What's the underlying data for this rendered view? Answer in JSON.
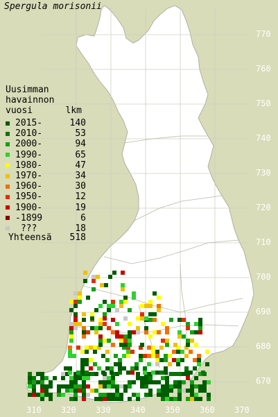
{
  "title": "Spergula morisonii",
  "legend": {
    "heading_line1": "Uusimman",
    "heading_line2": "havainnon",
    "heading_col1": "vuosi",
    "heading_col2": "lkm",
    "items": [
      {
        "label": "2015-",
        "count": "140",
        "color": "#005a00"
      },
      {
        "label": "2010-",
        "count": "53",
        "color": "#007800"
      },
      {
        "label": "2000-",
        "count": "94",
        "color": "#14a014"
      },
      {
        "label": "1990-",
        "count": "65",
        "color": "#30d030"
      },
      {
        "label": "1980-",
        "count": "47",
        "color": "#ffff00"
      },
      {
        "label": "1970-",
        "count": "34",
        "color": "#f0c000"
      },
      {
        "label": "1960-",
        "count": "30",
        "color": "#f07000"
      },
      {
        "label": "1950-",
        "count": "12",
        "color": "#e03000"
      },
      {
        "label": "1900-",
        "count": "19",
        "color": "#c80000"
      },
      {
        "label": "-1899",
        "count": "6",
        "color": "#800000"
      },
      {
        "label": " ???",
        "count": "18",
        "color": "#c8c8c8"
      }
    ],
    "total_label": "Yhteensä",
    "total_value": "518"
  },
  "axes": {
    "y_labels": [
      "770",
      "760",
      "750",
      "740",
      "730",
      "720",
      "710",
      "700",
      "690",
      "680",
      "670"
    ],
    "x_labels": [
      "310",
      "320",
      "330",
      "340",
      "350",
      "360",
      "370"
    ]
  },
  "colors": {
    "background": "#d8dcb8",
    "land": "#ffffff",
    "grid": "#c8c8c8",
    "border": "#b4b4a0"
  }
}
